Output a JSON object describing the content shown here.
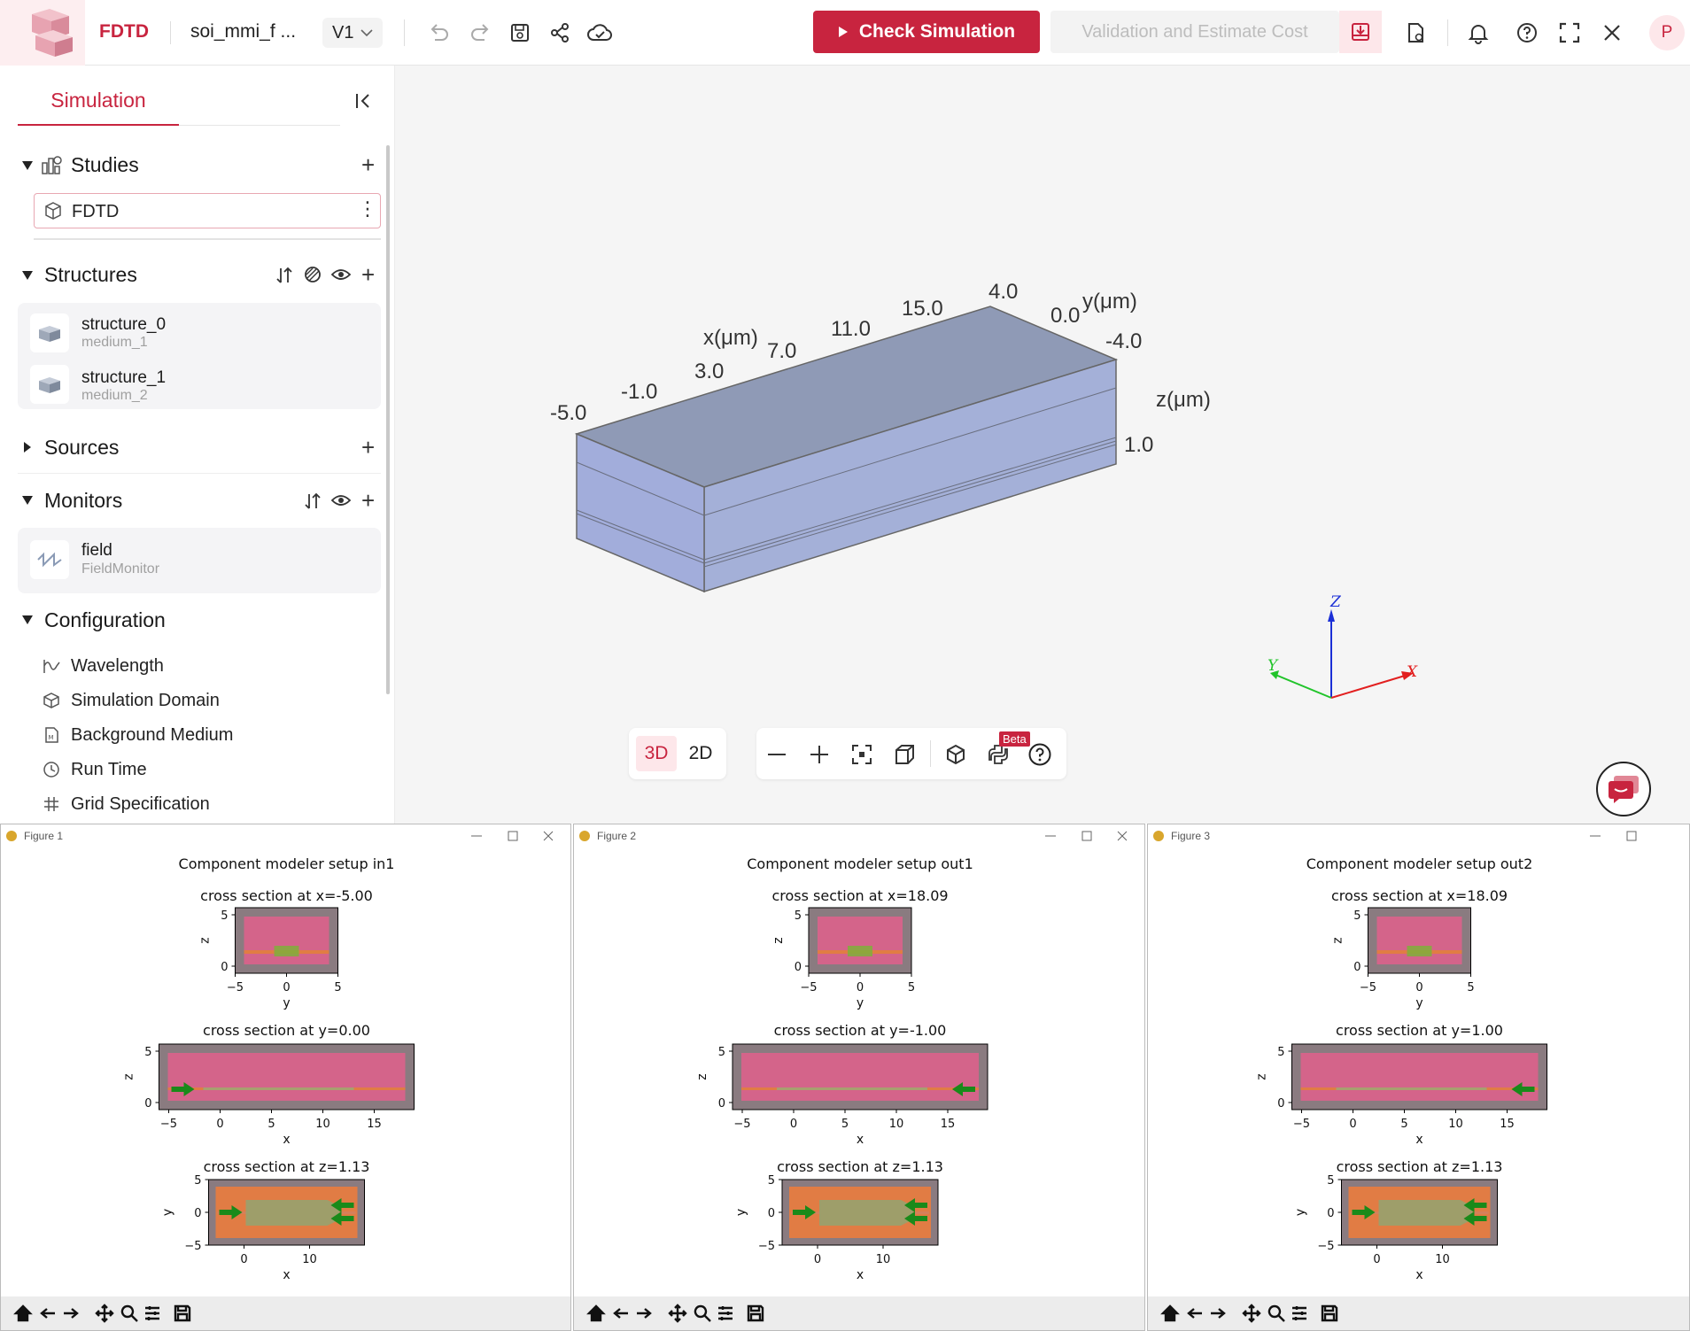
{
  "topbar": {
    "app_name": "FDTD",
    "project_name": "soi_mmi_f ...",
    "version": "V1",
    "check_label": "Check Simulation",
    "validate_label": "Validation and Estimate Cost",
    "avatar_letter": "P",
    "accent": "#c8243f"
  },
  "sidebar": {
    "tab_label": "Simulation",
    "studies": {
      "title": "Studies",
      "items": [
        {
          "label": "FDTD"
        }
      ]
    },
    "structures": {
      "title": "Structures",
      "items": [
        {
          "name": "structure_0",
          "medium": "medium_1"
        },
        {
          "name": "structure_1",
          "medium": "medium_2"
        }
      ]
    },
    "sources": {
      "title": "Sources"
    },
    "monitors": {
      "title": "Monitors",
      "items": [
        {
          "name": "field",
          "type": "FieldMonitor"
        }
      ]
    },
    "configuration": {
      "title": "Configuration",
      "items": [
        {
          "label": "Wavelength",
          "icon": "wave-icon"
        },
        {
          "label": "Simulation Domain",
          "icon": "cube-icon"
        },
        {
          "label": "Background Medium",
          "icon": "medium-icon"
        },
        {
          "label": "Run Time",
          "icon": "clock-icon"
        },
        {
          "label": "Grid Specification",
          "icon": "grid-icon"
        }
      ]
    }
  },
  "viewport": {
    "x_axis_label": "x(μm)",
    "x_ticks": [
      "-5.0",
      "-1.0",
      "3.0",
      "7.0",
      "11.0",
      "15.0"
    ],
    "y_axis_label": "y(μm)",
    "y_ticks": [
      "4.0",
      "0.0",
      "-4.0"
    ],
    "z_axis_label": "z(μm)",
    "z_ticks": [
      "1.0"
    ],
    "triad": {
      "z": "Z",
      "y": "Y",
      "x": "X"
    },
    "view_3d": "3D",
    "view_2d": "2D",
    "beta_label": "Beta"
  },
  "figures": [
    {
      "window_title": "Figure 1",
      "suptitle": "Component modeler setup in1",
      "panels": [
        {
          "title": "cross section at x=-5.00",
          "xlabel": "y",
          "ylabel": "z",
          "xticks": [
            "−5",
            "0",
            "5"
          ],
          "yticks": [
            "5",
            "0"
          ]
        },
        {
          "title": "cross section at y=0.00",
          "xlabel": "x",
          "ylabel": "z",
          "xticks": [
            "−5",
            "0",
            "5",
            "10",
            "15"
          ],
          "yticks": [
            "5",
            "0"
          ]
        },
        {
          "title": "cross section at z=1.13",
          "xlabel": "x",
          "ylabel": "y",
          "xticks": [
            "0",
            "10"
          ],
          "yticks": [
            "5",
            "0",
            "−5"
          ]
        }
      ]
    },
    {
      "window_title": "Figure 2",
      "suptitle": "Component modeler setup out1",
      "panels": [
        {
          "title": "cross section at x=18.09",
          "xlabel": "y",
          "ylabel": "z",
          "xticks": [
            "−5",
            "0",
            "5"
          ],
          "yticks": [
            "5",
            "0"
          ]
        },
        {
          "title": "cross section at y=-1.00",
          "xlabel": "x",
          "ylabel": "z",
          "xticks": [
            "−5",
            "0",
            "5",
            "10",
            "15"
          ],
          "yticks": [
            "5",
            "0"
          ]
        },
        {
          "title": "cross section at z=1.13",
          "xlabel": "x",
          "ylabel": "y",
          "xticks": [
            "0",
            "10"
          ],
          "yticks": [
            "5",
            "0",
            "−5"
          ]
        }
      ]
    },
    {
      "window_title": "Figure 3",
      "suptitle": "Component modeler setup out2",
      "panels": [
        {
          "title": "cross section at x=18.09",
          "xlabel": "y",
          "ylabel": "z",
          "xticks": [
            "−5",
            "0",
            "5"
          ],
          "yticks": [
            "5",
            "0"
          ]
        },
        {
          "title": "cross section at y=1.00",
          "xlabel": "x",
          "ylabel": "z",
          "xticks": [
            "−5",
            "0",
            "5",
            "10",
            "15"
          ],
          "yticks": [
            "5",
            "0"
          ]
        },
        {
          "title": "cross section at z=1.13",
          "xlabel": "x",
          "ylabel": "y",
          "xticks": [
            "0",
            "10"
          ],
          "yticks": [
            "5",
            "0",
            "−5"
          ]
        }
      ]
    }
  ]
}
